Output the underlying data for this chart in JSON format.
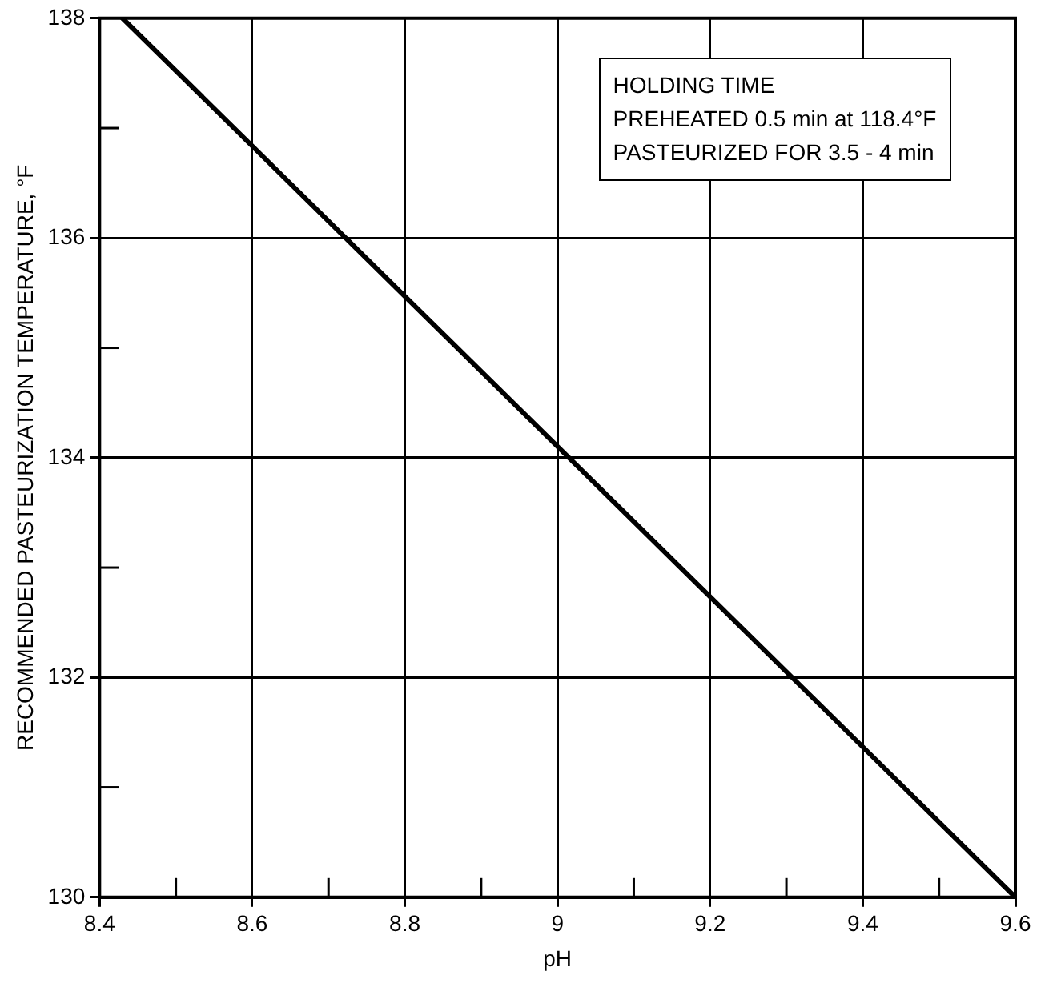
{
  "chart_data": {
    "type": "line",
    "xlabel": "pH",
    "ylabel": "RECOMMENDED PASTEURIZATION TEMPERATURE, °F",
    "x": [
      8.43,
      9.6
    ],
    "series": [
      {
        "color": "#000000",
        "values": [
          138,
          130
        ]
      }
    ],
    "xlim": [
      8.4,
      9.6
    ],
    "ylim": [
      130,
      138
    ],
    "xticks": [
      {
        "value": 8.4,
        "label": "8.4"
      },
      {
        "value": 8.5,
        "label": null
      },
      {
        "value": 8.6,
        "label": "8.6"
      },
      {
        "value": 8.7,
        "label": null
      },
      {
        "value": 8.8,
        "label": "8.8"
      },
      {
        "value": 8.9,
        "label": null
      },
      9,
      {
        "value": 9.1,
        "label": null
      },
      {
        "value": 9.2,
        "label": "9.2"
      },
      {
        "value": 9.3,
        "label": null
      },
      {
        "value": 9.4,
        "label": "9.4"
      },
      {
        "value": 9.5,
        "label": null
      },
      {
        "value": 9.6,
        "label": "9.6"
      }
    ],
    "yticks": [
      130,
      {
        "value": 131,
        "label": null
      },
      132,
      {
        "value": 133,
        "label": null
      },
      134,
      {
        "value": 135,
        "label": null
      },
      136,
      {
        "value": 137,
        "label": null
      },
      138
    ],
    "annotations": [
      "HOLDING TIME",
      "PREHEATED 0.5 min at 118.4°F",
      "PASTEURIZED FOR 3.5 - 4 min"
    ],
    "grid": true,
    "legend": false,
    "marker": "none",
    "line_style": "solid"
  }
}
